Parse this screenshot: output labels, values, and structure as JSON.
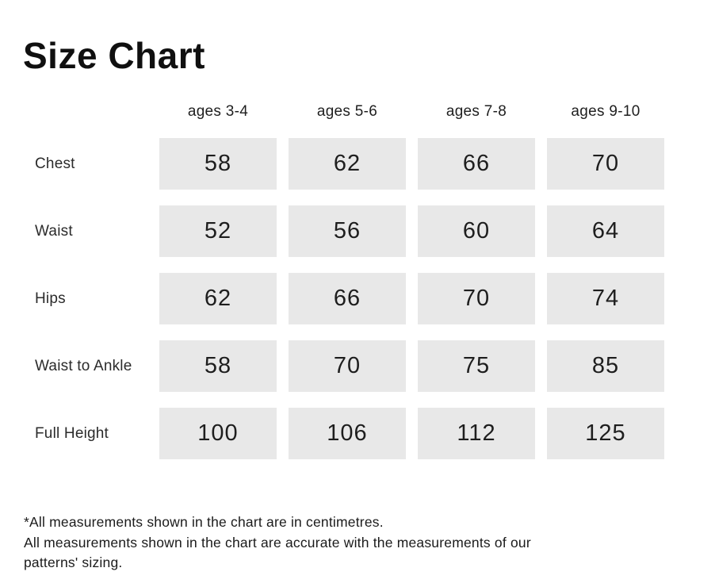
{
  "page": {
    "title": "Size Chart"
  },
  "chart_data": {
    "type": "table",
    "title": "Size Chart",
    "unit": "centimetres",
    "columns": [
      "ages 3-4",
      "ages 5-6",
      "ages 7-8",
      "ages 9-10"
    ],
    "rows": [
      {
        "label": "Chest",
        "values": [
          "58",
          "62",
          "66",
          "70"
        ]
      },
      {
        "label": "Waist",
        "values": [
          "52",
          "56",
          "60",
          "64"
        ]
      },
      {
        "label": "Hips",
        "values": [
          "62",
          "66",
          "70",
          "74"
        ]
      },
      {
        "label": "Waist to Ankle",
        "values": [
          "58",
          "70",
          "75",
          "85"
        ]
      },
      {
        "label": "Full Height",
        "values": [
          "100",
          "106",
          "112",
          "125"
        ]
      }
    ],
    "notes": [
      "*All measurements shown in the chart are in centimetres.",
      "All measurements shown in the chart are accurate with the measurements of our patterns' sizing."
    ]
  },
  "colors": {
    "cell_background": "#e8e8e8",
    "title_text": "#101010",
    "body_text": "#1b1b1b"
  }
}
